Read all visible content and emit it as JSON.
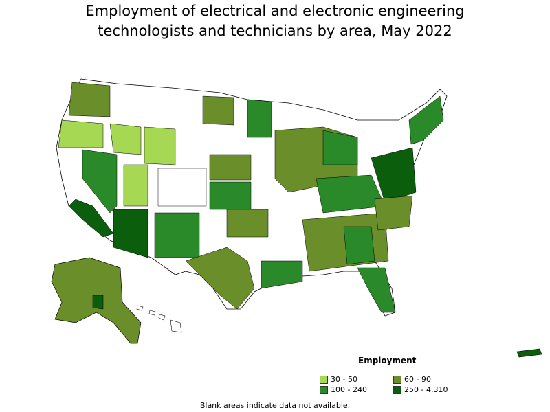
{
  "title_line1": "Employment of electrical and electronic engineering",
  "title_line2": "technologists and technicians by area, May 2022",
  "legend": {
    "title": "Employment",
    "items": [
      {
        "label": "30 - 50",
        "color": "#a6d854"
      },
      {
        "label": "60 - 90",
        "color": "#6a8f2a"
      },
      {
        "label": "100 - 240",
        "color": "#2a8a2a"
      },
      {
        "label": "250 - 4,310",
        "color": "#0b5e0b"
      }
    ]
  },
  "footnote": "Blank areas indicate data not available.",
  "colors": {
    "outline": "#000000",
    "blank": "#ffffff"
  }
}
